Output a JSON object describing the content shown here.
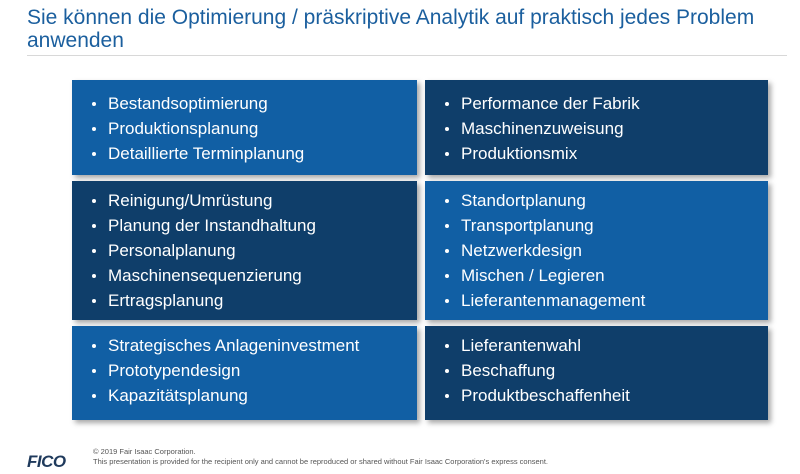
{
  "header": {
    "title": "Sie können die Optimierung / präskriptive Analytik auf praktisch jedes Problem anwenden"
  },
  "boxes": [
    {
      "items": [
        "Bestandsoptimierung",
        "Produktionsplanung",
        "Detaillierte Terminplanung"
      ]
    },
    {
      "items": [
        "Performance der Fabrik",
        "Maschinenzuweisung",
        "Produktionsmix"
      ]
    },
    {
      "items": [
        "Reinigung/Umrüstung",
        "Planung der Instandhaltung",
        "Personalplanung",
        "Maschinensequenzierung",
        "Ertragsplanung"
      ]
    },
    {
      "items": [
        "Standortplanung",
        "Transportplanung",
        "Netzwerkdesign",
        "Mischen / Legieren",
        "Lieferantenmanagement"
      ]
    },
    {
      "items": [
        "Strategisches Anlageninvestment",
        "Prototypendesign",
        "Kapazitätsplanung"
      ]
    },
    {
      "items": [
        "Lieferantenwahl",
        "Beschaffung",
        "Produktbeschaffenheit"
      ]
    }
  ],
  "footer": {
    "logo": "FICO",
    "copyright": "© 2019 Fair Isaac Corporation.",
    "notice": "This presentation is provided for the recipient only and cannot be reproduced or shared without Fair Isaac Corporation's express consent."
  },
  "colors": {
    "title": "#1b5f9e",
    "box_light": "#115fa4",
    "box_dark": "#0f3e6a"
  }
}
